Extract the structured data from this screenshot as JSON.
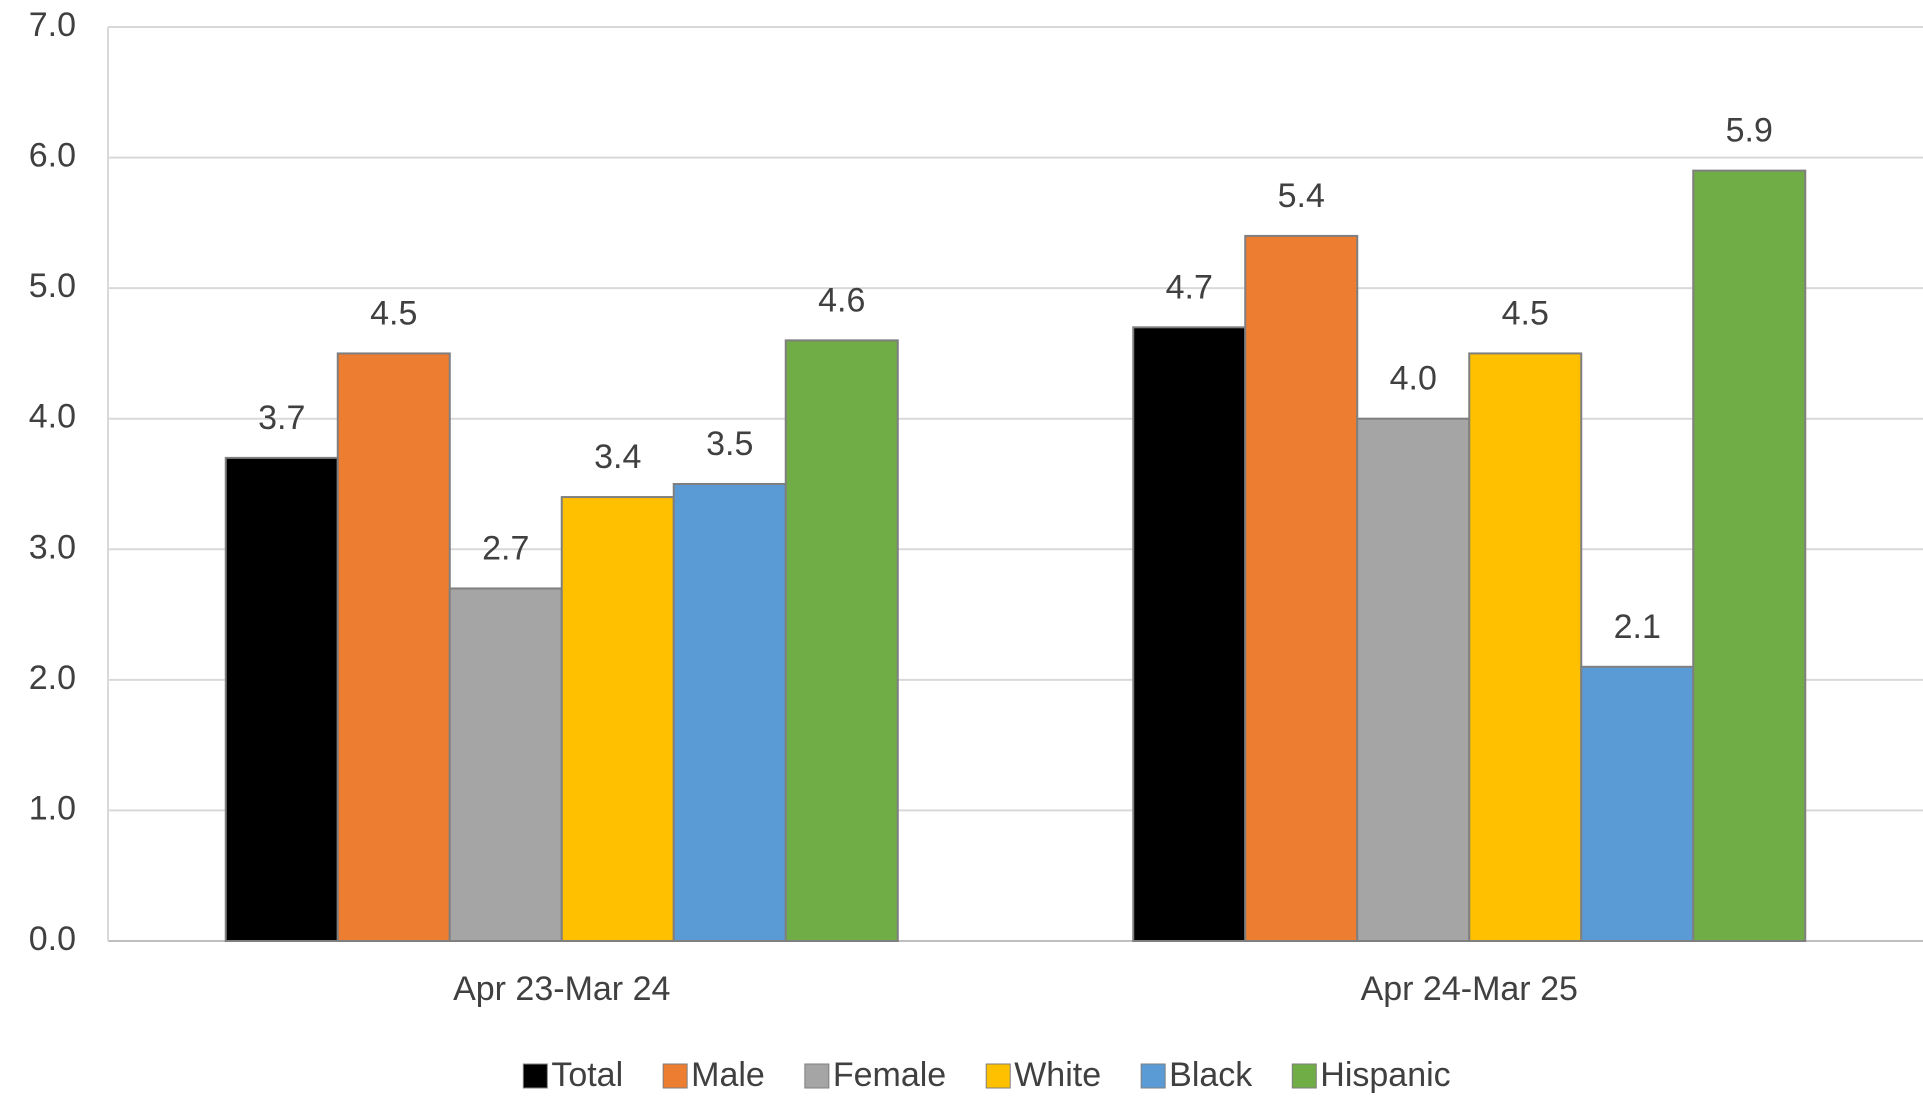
{
  "chart_data": {
    "type": "bar",
    "categories": [
      "Apr 23-Mar 24",
      "Apr 24-Mar 25"
    ],
    "series": [
      {
        "name": "Total",
        "color": "#000000",
        "values": [
          3.7,
          4.7
        ],
        "value_labels": [
          "3.7",
          "4.7"
        ]
      },
      {
        "name": "Male",
        "color": "#ed7d31",
        "values": [
          4.5,
          5.4
        ],
        "value_labels": [
          "4.5",
          "5.4"
        ]
      },
      {
        "name": "Female",
        "color": "#a5a5a5",
        "values": [
          2.7,
          4.0
        ],
        "value_labels": [
          "2.7",
          "4.0"
        ]
      },
      {
        "name": "White",
        "color": "#ffc000",
        "values": [
          3.4,
          4.5
        ],
        "value_labels": [
          "3.4",
          "4.5"
        ]
      },
      {
        "name": "Black",
        "color": "#5b9bd5",
        "values": [
          3.5,
          2.1
        ],
        "value_labels": [
          "3.5",
          "2.1"
        ]
      },
      {
        "name": "Hispanic",
        "color": "#70ad47",
        "values": [
          4.6,
          5.9
        ],
        "value_labels": [
          "4.6",
          "5.9"
        ]
      }
    ],
    "ylim": [
      0,
      7
    ],
    "yticks": [
      {
        "value": 0,
        "label": "0.0"
      },
      {
        "value": 1,
        "label": "1.0"
      },
      {
        "value": 2,
        "label": "2.0"
      },
      {
        "value": 3,
        "label": "3.0"
      },
      {
        "value": 4,
        "label": "4.0"
      },
      {
        "value": 5,
        "label": "5.0"
      },
      {
        "value": 6,
        "label": "6.0"
      },
      {
        "value": 7,
        "label": "7.0"
      }
    ],
    "grid": true,
    "legend": "bottom"
  }
}
